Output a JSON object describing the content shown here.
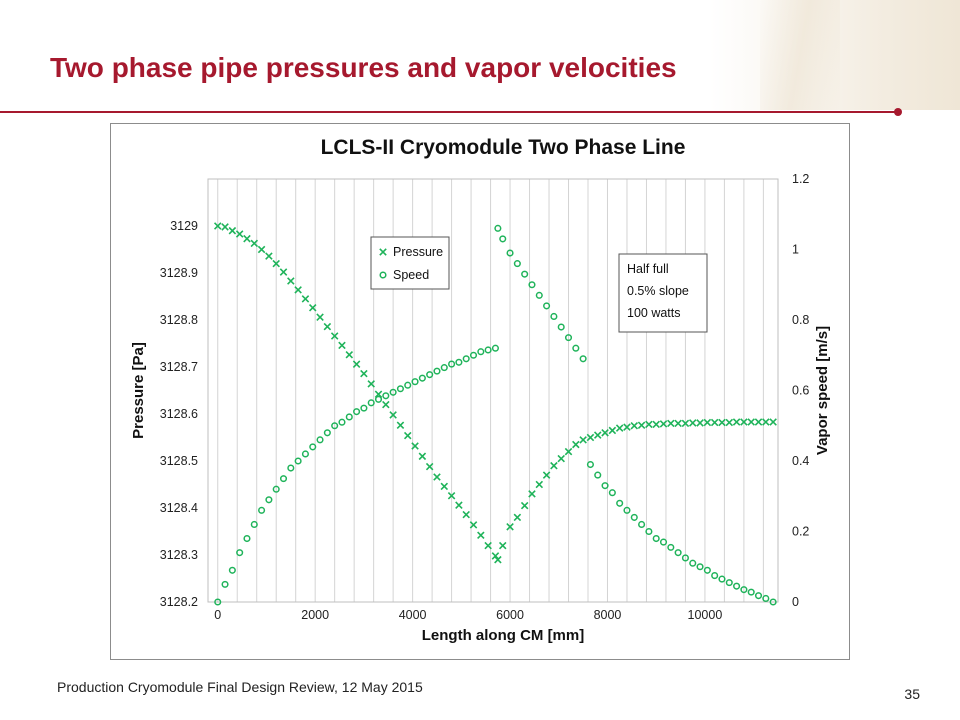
{
  "slide": {
    "title": "Two phase pipe pressures and vapor velocities",
    "footer": "Production Cryomodule Final Design Review, 12 May 2015",
    "page_number": "35",
    "accent_color": "#a6192e"
  },
  "chart_data": {
    "type": "scatter",
    "title": "LCLS-II Cryomodule Two Phase Line",
    "xlabel": "Length along CM [mm]",
    "ylabel": "Pressure [Pa]",
    "y2label": "Vapor speed [m/s]",
    "xlim": [
      -200,
      11500
    ],
    "ylim": [
      3128.2,
      3129.1
    ],
    "y2lim": [
      0,
      1.2
    ],
    "xticks": [
      "0",
      "2000",
      "4000",
      "6000",
      "8000",
      "10000"
    ],
    "yticks": [
      "3128.2",
      "3128.3",
      "3128.4",
      "3128.5",
      "3128.6",
      "3128.7",
      "3128.8",
      "3128.9",
      "3129"
    ],
    "y2ticks": [
      "0",
      "0.2",
      "0.4",
      "0.6",
      "0.8",
      "1",
      "1.2"
    ],
    "grid": "vertical",
    "series_color": "#1fb35a",
    "legend": {
      "position": "top-left",
      "entries": [
        "Pressure",
        "Speed"
      ]
    },
    "annotation": [
      "Half full",
      "0.5% slope",
      "100 watts"
    ],
    "series": [
      {
        "name": "Pressure",
        "marker": "x",
        "axis": "left",
        "x": [
          0,
          150,
          300,
          450,
          600,
          750,
          900,
          1050,
          1200,
          1350,
          1500,
          1650,
          1800,
          1950,
          2100,
          2250,
          2400,
          2550,
          2700,
          2850,
          3000,
          3150,
          3300,
          3450,
          3600,
          3750,
          3900,
          4050,
          4200,
          4350,
          4500,
          4650,
          4800,
          4950,
          5100,
          5250,
          5400,
          5550,
          5700,
          5750,
          5850,
          6000,
          6150,
          6300,
          6450,
          6600,
          6750,
          6900,
          7050,
          7200,
          7350,
          7500,
          7650,
          7800,
          7950,
          8100,
          8250,
          8400,
          8550,
          8700,
          8850,
          9000,
          9150,
          9300,
          9450,
          9600,
          9750,
          9900,
          10050,
          10200,
          10350,
          10500,
          10650,
          10800,
          10950,
          11100,
          11250,
          11400
        ],
        "y": [
          3129.0,
          3128.998,
          3128.99,
          3128.983,
          3128.973,
          3128.963,
          3128.95,
          3128.936,
          3128.92,
          3128.902,
          3128.883,
          3128.864,
          3128.845,
          3128.826,
          3128.806,
          3128.786,
          3128.766,
          3128.746,
          3128.726,
          3128.706,
          3128.686,
          3128.664,
          3128.642,
          3128.62,
          3128.598,
          3128.576,
          3128.554,
          3128.532,
          3128.51,
          3128.488,
          3128.466,
          3128.446,
          3128.426,
          3128.406,
          3128.386,
          3128.364,
          3128.342,
          3128.32,
          3128.298,
          3128.29,
          3128.32,
          3128.36,
          3128.38,
          3128.405,
          3128.43,
          3128.45,
          3128.47,
          3128.49,
          3128.505,
          3128.52,
          3128.535,
          3128.545,
          3128.55,
          3128.555,
          3128.56,
          3128.565,
          3128.57,
          3128.572,
          3128.575,
          3128.576,
          3128.578,
          3128.578,
          3128.579,
          3128.58,
          3128.58,
          3128.58,
          3128.581,
          3128.581,
          3128.582,
          3128.582,
          3128.582,
          3128.582,
          3128.583,
          3128.583,
          3128.583,
          3128.583,
          3128.583,
          3128.583
        ]
      },
      {
        "name": "Speed",
        "marker": "o",
        "axis": "right",
        "x": [
          0,
          150,
          300,
          450,
          600,
          750,
          900,
          1050,
          1200,
          1350,
          1500,
          1650,
          1800,
          1950,
          2100,
          2250,
          2400,
          2550,
          2700,
          2850,
          3000,
          3150,
          3300,
          3450,
          3600,
          3750,
          3900,
          4050,
          4200,
          4350,
          4500,
          4650,
          4800,
          4950,
          5100,
          5250,
          5400,
          5550,
          5700,
          5750,
          5850,
          6000,
          6150,
          6300,
          6450,
          6600,
          6750,
          6900,
          7050,
          7200,
          7350,
          7500,
          7650,
          7800,
          7950,
          8100,
          8250,
          8400,
          8550,
          8700,
          8850,
          9000,
          9150,
          9300,
          9450,
          9600,
          9750,
          9900,
          10050,
          10200,
          10350,
          10500,
          10650,
          10800,
          10950,
          11100,
          11250,
          11400
        ],
        "y": [
          0.0,
          0.05,
          0.09,
          0.14,
          0.18,
          0.22,
          0.26,
          0.29,
          0.32,
          0.35,
          0.38,
          0.4,
          0.42,
          0.44,
          0.46,
          0.48,
          0.5,
          0.51,
          0.525,
          0.54,
          0.55,
          0.565,
          0.575,
          0.585,
          0.595,
          0.605,
          0.615,
          0.625,
          0.635,
          0.645,
          0.655,
          0.665,
          0.675,
          0.68,
          0.69,
          0.7,
          0.71,
          0.715,
          0.72,
          1.06,
          1.03,
          0.99,
          0.96,
          0.93,
          0.9,
          0.87,
          0.84,
          0.81,
          0.78,
          0.75,
          0.72,
          0.69,
          0.39,
          0.36,
          0.33,
          0.31,
          0.28,
          0.26,
          0.24,
          0.22,
          0.2,
          0.18,
          0.17,
          0.155,
          0.14,
          0.125,
          0.11,
          0.1,
          0.09,
          0.075,
          0.065,
          0.055,
          0.045,
          0.035,
          0.028,
          0.018,
          0.01,
          0.0
        ]
      }
    ]
  }
}
